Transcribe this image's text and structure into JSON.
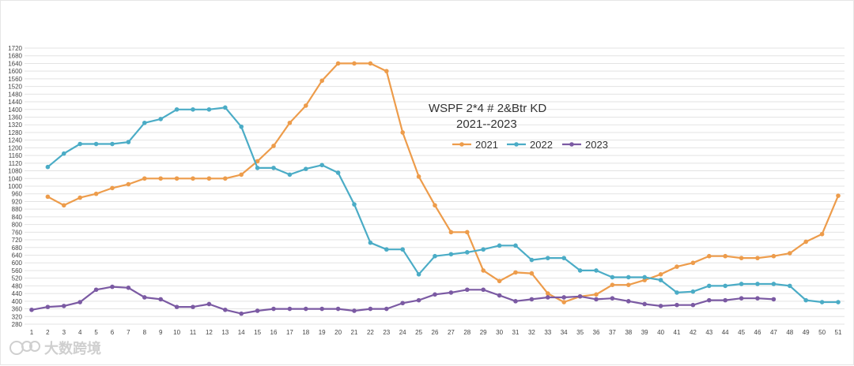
{
  "chart_data": {
    "type": "line",
    "title": "WSPF 2*4 # 2&Btr KD",
    "subtitle": "2021--2023",
    "xlabel": "",
    "ylabel": "",
    "ylim": [
      280,
      1720
    ],
    "yticks": [
      280,
      320,
      360,
      400,
      440,
      480,
      520,
      560,
      600,
      640,
      680,
      720,
      760,
      800,
      840,
      880,
      920,
      960,
      1000,
      1040,
      1080,
      1120,
      1160,
      1200,
      1240,
      1280,
      1320,
      1360,
      1400,
      1440,
      1480,
      1520,
      1560,
      1600,
      1640,
      1680,
      1720
    ],
    "x": [
      1,
      2,
      3,
      4,
      5,
      6,
      7,
      8,
      9,
      10,
      11,
      12,
      13,
      14,
      15,
      16,
      17,
      18,
      19,
      20,
      21,
      22,
      23,
      24,
      25,
      26,
      27,
      28,
      29,
      30,
      31,
      32,
      33,
      34,
      35,
      36,
      37,
      38,
      39,
      40,
      41,
      42,
      43,
      44,
      45,
      46,
      47,
      48,
      49,
      50,
      51
    ],
    "grid": true,
    "legend_position": "top-center",
    "series": [
      {
        "name": "2021",
        "color": "#ED9C4B",
        "values": [
          null,
          945,
          900,
          940,
          960,
          990,
          1010,
          1040,
          1040,
          1040,
          1040,
          1040,
          1040,
          1060,
          1130,
          1210,
          1330,
          1420,
          1550,
          1640,
          1640,
          1640,
          1600,
          1280,
          1050,
          900,
          760,
          760,
          560,
          505,
          550,
          545,
          440,
          395,
          425,
          435,
          485,
          485,
          510,
          540,
          580,
          600,
          635,
          635,
          625,
          625,
          635,
          650,
          710,
          750,
          950
        ]
      },
      {
        "name": "2022",
        "color": "#4BACC6",
        "values": [
          null,
          1100,
          1170,
          1220,
          1220,
          1220,
          1230,
          1330,
          1350,
          1400,
          1400,
          1400,
          1410,
          1310,
          1095,
          1095,
          1060,
          1090,
          1110,
          1070,
          905,
          705,
          670,
          670,
          540,
          635,
          645,
          655,
          670,
          690,
          690,
          615,
          625,
          625,
          560,
          560,
          525,
          525,
          525,
          510,
          445,
          450,
          480,
          480,
          490,
          490,
          490,
          480,
          405,
          395,
          395
        ]
      },
      {
        "name": "2023",
        "color": "#7B5AA3",
        "values": [
          355,
          370,
          375,
          395,
          460,
          475,
          470,
          420,
          410,
          370,
          370,
          385,
          355,
          335,
          350,
          360,
          360,
          360,
          360,
          360,
          350,
          360,
          360,
          390,
          405,
          435,
          445,
          460,
          460,
          430,
          400,
          410,
          420,
          420,
          425,
          410,
          415,
          400,
          385,
          375,
          380,
          380,
          405,
          405,
          415,
          415,
          410,
          null,
          null,
          null,
          null
        ]
      }
    ]
  },
  "watermark": {
    "text": "大数跨境"
  }
}
